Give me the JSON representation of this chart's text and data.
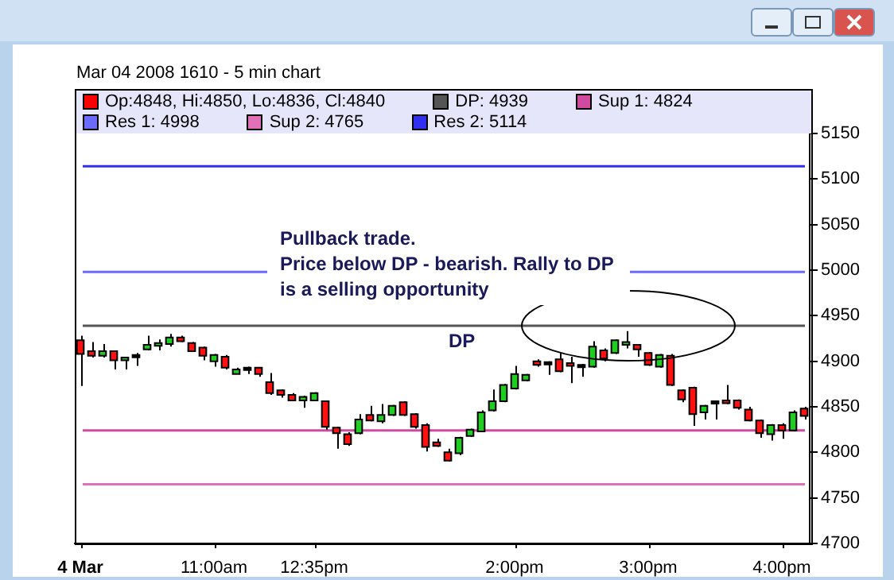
{
  "chart_data": {
    "type": "candlestick",
    "title": "Mar 04 2008 1610 - 5 min chart",
    "categories": [
      "4 Mar",
      null,
      null,
      null,
      null,
      null,
      null,
      null,
      null,
      null,
      null,
      null,
      "11:00am",
      null,
      null,
      null,
      null,
      null,
      null,
      null,
      null,
      "12:35pm",
      null,
      null,
      null,
      null,
      null,
      null,
      null,
      null,
      null,
      null,
      null,
      null,
      null,
      null,
      null,
      null,
      null,
      "2:00pm",
      null,
      null,
      null,
      null,
      null,
      null,
      null,
      null,
      null,
      null,
      null,
      "3:00pm",
      null,
      null,
      null,
      null,
      null,
      null,
      null,
      null,
      null,
      null,
      null,
      "4:00pm",
      null,
      null
    ],
    "ohlc": [
      [
        4923,
        4928,
        4873,
        4908
      ],
      [
        4911,
        4921,
        4904,
        4906
      ],
      [
        4906,
        4919,
        4904,
        4911
      ],
      [
        4911,
        4912,
        4891,
        4901
      ],
      [
        4901,
        4905,
        4891,
        4904
      ],
      [
        4907,
        4909,
        4895,
        4907
      ],
      [
        4913,
        4928,
        4912,
        4918
      ],
      [
        4917,
        4924,
        4912,
        4920
      ],
      [
        4919,
        4930,
        4916,
        4926
      ],
      [
        4926,
        4928,
        4921,
        4922
      ],
      [
        4920,
        4921,
        4911,
        4911
      ],
      [
        4915,
        4916,
        4901,
        4906
      ],
      [
        4900,
        4908,
        4894,
        4907
      ],
      [
        4905,
        4907,
        4891,
        4893
      ],
      [
        4886,
        4893,
        4886,
        4891
      ],
      [
        4893,
        4894,
        4886,
        4893
      ],
      [
        4893,
        4893,
        4883,
        4886
      ],
      [
        4877,
        4887,
        4863,
        4865
      ],
      [
        4868,
        4869,
        4860,
        4863
      ],
      [
        4863,
        4865,
        4856,
        4857
      ],
      [
        4857,
        4862,
        4849,
        4861
      ],
      [
        4857,
        4866,
        4856,
        4865
      ],
      [
        4856,
        4857,
        4825,
        4828
      ],
      [
        4827,
        4828,
        4804,
        4821
      ],
      [
        4820,
        4822,
        4807,
        4809
      ],
      [
        4821,
        4842,
        4820,
        4836
      ],
      [
        4841,
        4851,
        4834,
        4835
      ],
      [
        4834,
        4853,
        4832,
        4841
      ],
      [
        4841,
        4852,
        4840,
        4851
      ],
      [
        4855,
        4856,
        4840,
        4841
      ],
      [
        4842,
        4843,
        4826,
        4828
      ],
      [
        4830,
        4832,
        4801,
        4806
      ],
      [
        4811,
        4815,
        4806,
        4807
      ],
      [
        4800,
        4804,
        4790,
        4791
      ],
      [
        4799,
        4817,
        4797,
        4816
      ],
      [
        4818,
        4826,
        4817,
        4825
      ],
      [
        4823,
        4846,
        4822,
        4844
      ],
      [
        4846,
        4869,
        4845,
        4856
      ],
      [
        4856,
        4875,
        4855,
        4874
      ],
      [
        4870,
        4895,
        4869,
        4886
      ],
      [
        4879,
        4886,
        4878,
        4885
      ],
      [
        4900,
        4902,
        4894,
        4896
      ],
      [
        4899,
        4900,
        4885,
        4899
      ],
      [
        4902,
        4909,
        4888,
        4889
      ],
      [
        4898,
        4905,
        4876,
        4895
      ],
      [
        4896,
        4897,
        4883,
        4896
      ],
      [
        4894,
        4922,
        4893,
        4916
      ],
      [
        4912,
        4914,
        4900,
        4903
      ],
      [
        4909,
        4924,
        4908,
        4923
      ],
      [
        4918,
        4933,
        4914,
        4921
      ],
      [
        4918,
        4919,
        4905,
        4913
      ],
      [
        4909,
        4910,
        4895,
        4896
      ],
      [
        4894,
        4908,
        4893,
        4907
      ],
      [
        4906,
        4908,
        4873,
        4874
      ],
      [
        4868,
        4869,
        4855,
        4858
      ],
      [
        4871,
        4872,
        4829,
        4842
      ],
      [
        4844,
        4852,
        4836,
        4851
      ],
      [
        4856,
        4857,
        4836,
        4856
      ],
      [
        4857,
        4874,
        4853,
        4854
      ],
      [
        4857,
        4858,
        4847,
        4849
      ],
      [
        4847,
        4850,
        4834,
        4835
      ],
      [
        4835,
        4836,
        4816,
        4821
      ],
      [
        4820,
        4831,
        4813,
        4830
      ],
      [
        4830,
        4832,
        4815,
        4824
      ],
      [
        4824,
        4846,
        4823,
        4844
      ],
      [
        4848,
        4850,
        4836,
        4840
      ]
    ],
    "ylim": [
      4700,
      5150
    ],
    "yticks": [
      4700,
      4750,
      4800,
      4850,
      4900,
      4950,
      5000,
      5050,
      5100,
      5150
    ],
    "ref_lines": [
      {
        "axis": "y",
        "value": 4939,
        "label": "DP: 4939",
        "color": "#555555"
      },
      {
        "axis": "y",
        "value": 4824,
        "label": "Sup 1: 4824",
        "color": "#d04aa0"
      },
      {
        "axis": "y",
        "value": 4998,
        "label": "Res 1: 4998",
        "color": "#6a6aff"
      },
      {
        "axis": "y",
        "value": 4765,
        "label": "Sup 2: 4765",
        "color": "#e070b8"
      },
      {
        "axis": "y",
        "value": 5114,
        "label": "Res 2: 5114",
        "color": "#3030ee"
      }
    ],
    "annotations": [
      "Op:4848, Hi:4850, Lo:4836, Cl:4840",
      {
        "text": "DP",
        "y": 4939
      },
      "Pullback trade.\nPrice below DP - bearish. Rally to DP is a selling opportunity"
    ],
    "legend": "top",
    "grid": false
  }
}
